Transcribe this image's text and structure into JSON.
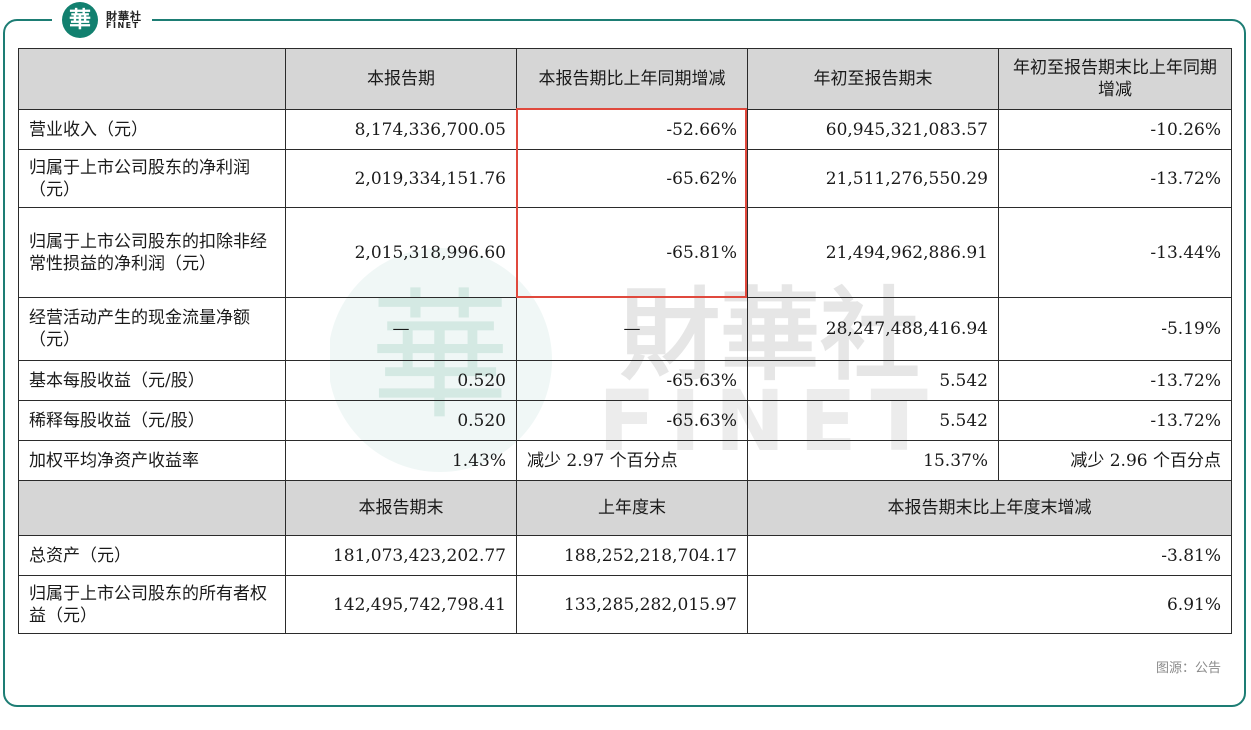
{
  "logo": {
    "char": "華",
    "cn": "財華社",
    "en": "FINET"
  },
  "watermark": {
    "cn": "財華社",
    "en": "FINET"
  },
  "header1": [
    "",
    "本报告期",
    "本报告期比上年同期增减",
    "年初至报告期末",
    "年初至报告期末比上年同期增减"
  ],
  "rows1": [
    [
      "营业收入（元）",
      "8,174,336,700.05",
      "-52.66%",
      "60,945,321,083.57",
      "-10.26%"
    ],
    [
      "归属于上市公司股东的净利润（元）",
      "2,019,334,151.76",
      "-65.62%",
      "21,511,276,550.29",
      "-13.72%"
    ],
    [
      "归属于上市公司股东的扣除非经常性损益的净利润（元）",
      "2,015,318,996.60",
      "-65.81%",
      "21,494,962,886.91",
      "-13.44%"
    ],
    [
      "经营活动产生的现金流量净额（元）",
      "—",
      "—",
      "28,247,488,416.94",
      "-5.19%"
    ],
    [
      "基本每股收益（元/股）",
      "0.520",
      "-65.63%",
      "5.542",
      "-13.72%"
    ],
    [
      "稀释每股收益（元/股）",
      "0.520",
      "-65.63%",
      "5.542",
      "-13.72%"
    ],
    [
      "加权平均净资产收益率",
      "1.43%",
      "减少 2.97 个百分点",
      "15.37%",
      "减少 2.96 个百分点"
    ]
  ],
  "header2": [
    "",
    "本报告期末",
    "上年度末",
    "本报告期末比上年度末增减"
  ],
  "rows2": [
    [
      "总资产（元）",
      "181,073,423,202.77",
      "188,252,218,704.17",
      "-3.81%"
    ],
    [
      "归属于上市公司股东的所有者权益（元）",
      "142,495,742,798.41",
      "133,285,282,015.97",
      "6.91%"
    ]
  ],
  "source": "图源：公告",
  "colors": {
    "frame": "#1d7d74",
    "highlight": "#e0493d",
    "header_bg": "#d6d6d6"
  }
}
